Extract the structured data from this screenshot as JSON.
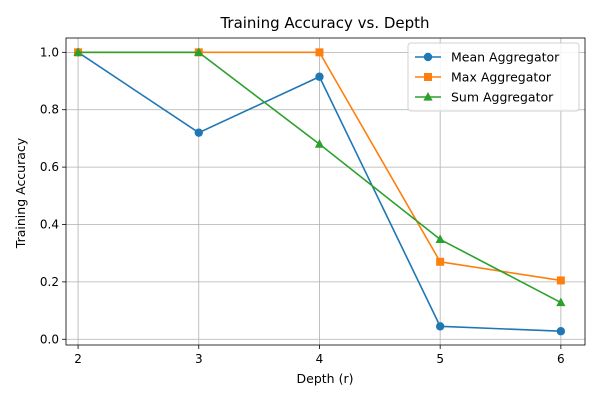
{
  "chart_data": {
    "type": "line",
    "title": "Training Accuracy vs. Depth",
    "xlabel": "Depth (r)",
    "ylabel": "Training Accuracy",
    "x": [
      2,
      3,
      4,
      5,
      6
    ],
    "xlim": [
      1.9,
      6.2
    ],
    "ylim": [
      -0.02,
      1.05
    ],
    "xticks": [
      2,
      3,
      4,
      5,
      6
    ],
    "yticks": [
      0.0,
      0.2,
      0.4,
      0.6,
      0.8,
      1.0
    ],
    "grid": true,
    "legend_position": "top-right",
    "series": [
      {
        "name": "Mean Aggregator",
        "values": [
          1.0,
          0.72,
          0.915,
          0.045,
          0.028
        ],
        "color": "#1f77b4",
        "marker": "circle"
      },
      {
        "name": "Max Aggregator",
        "values": [
          1.0,
          1.0,
          1.0,
          0.27,
          0.205
        ],
        "color": "#ff7f0e",
        "marker": "square"
      },
      {
        "name": "Sum Aggregator",
        "values": [
          1.0,
          1.0,
          0.68,
          0.348,
          0.128
        ],
        "color": "#2ca02c",
        "marker": "triangle"
      }
    ]
  }
}
